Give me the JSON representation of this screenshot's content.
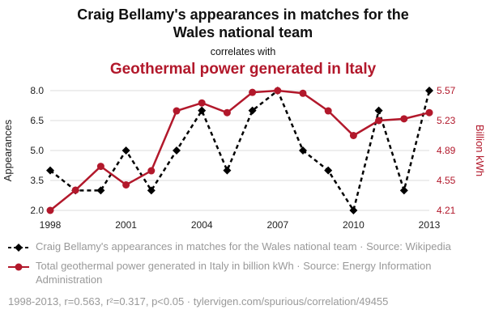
{
  "header": {
    "title": "Craig Bellamy's appearances in matches for the Wales national team",
    "subtitle": "correlates with",
    "title2": "Geothermal power generated in Italy",
    "title2_color": "#b2182b"
  },
  "chart_data": {
    "type": "line",
    "x": [
      1998,
      1999,
      2000,
      2001,
      2002,
      2003,
      2004,
      2005,
      2006,
      2007,
      2008,
      2009,
      2010,
      2011,
      2012,
      2013
    ],
    "xticks": [
      "1998",
      "2001",
      "2004",
      "2007",
      "2010",
      "2013"
    ],
    "grid": true,
    "legend_position": "bottom-left",
    "left_axis": {
      "label": "Appearances",
      "min": 2.0,
      "max": 8.0,
      "ticks": [
        "2.0",
        "3.5",
        "5.0",
        "6.5",
        "8.0"
      ]
    },
    "right_axis": {
      "label": "Billion kWh",
      "min": 4.21,
      "max": 5.57,
      "ticks": [
        "4.21",
        "4.55",
        "4.89",
        "5.23",
        "5.57"
      ]
    },
    "series": [
      {
        "name": "Craig Bellamy's appearances in matches for the Wales national team",
        "axis": "left",
        "color": "#000000",
        "style": "dashed",
        "marker": "diamond",
        "values": [
          4,
          3,
          3,
          5,
          3,
          5,
          7,
          4,
          7,
          8,
          5,
          4,
          2,
          7,
          3,
          8
        ]
      },
      {
        "name": "Total geothermal power generated in Italy in billion kWh",
        "axis": "right",
        "color": "#b2182b",
        "style": "solid",
        "marker": "circle",
        "values": [
          4.21,
          4.44,
          4.71,
          4.5,
          4.66,
          5.34,
          5.43,
          5.32,
          5.55,
          5.57,
          5.54,
          5.34,
          5.06,
          5.23,
          5.25,
          5.32
        ]
      }
    ]
  },
  "legend": {
    "series1": "Craig Bellamy's appearances in matches for the Wales national team · Source: Wikipedia",
    "series2": "Total geothermal power generated in Italy in billion kWh · Source: Energy Information Administration"
  },
  "footer": {
    "stats": "1998-2013, r=0.563, r²=0.317, p<0.05 · tylervigen.com/spurious/correlation/49455"
  }
}
